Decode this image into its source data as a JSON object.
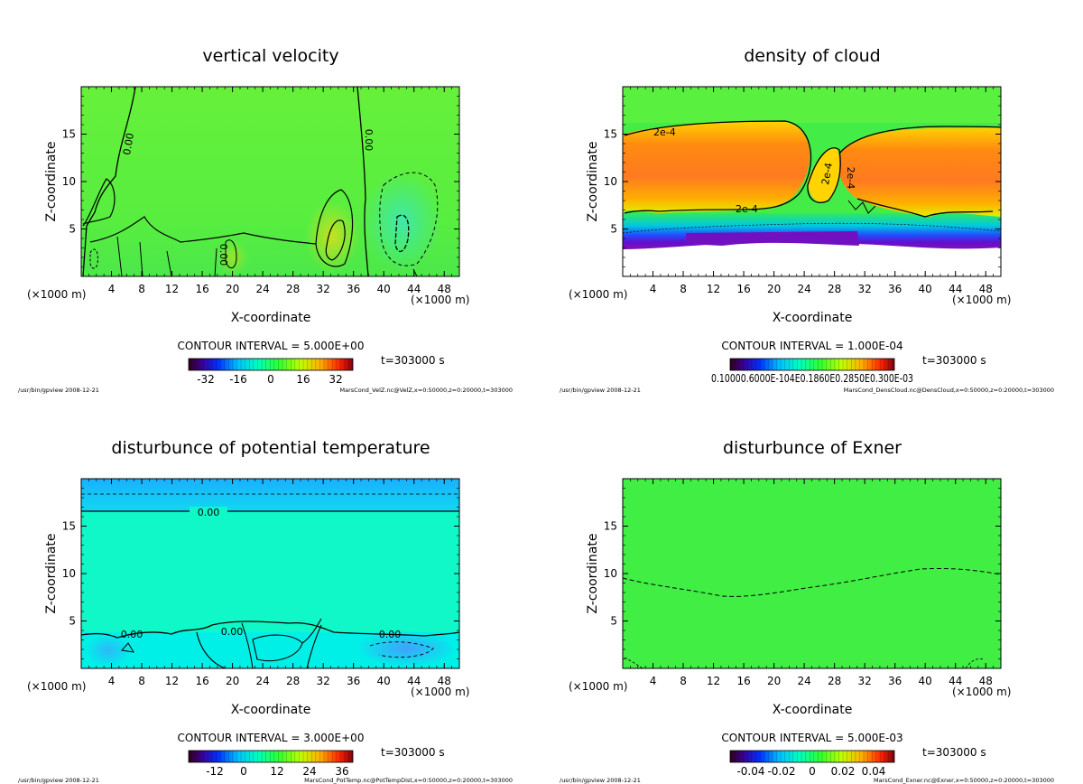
{
  "chart_data": [
    {
      "type": "heatmap",
      "title": "vertical velocity",
      "xlabel": "X-coordinate",
      "ylabel": "Z-coordinate",
      "x_unit_left": "(×1000 m)",
      "x_unit_right": "(×1000 m)",
      "xlim": [
        0,
        50
      ],
      "ylim": [
        0,
        20
      ],
      "xticks": [
        4,
        8,
        12,
        16,
        20,
        24,
        28,
        32,
        36,
        40,
        44,
        48
      ],
      "yticks": [
        5,
        10,
        15
      ],
      "contour_interval": "CONTOUR INTERVAL = 5.000E+00",
      "time": "t=303000 s",
      "colorbar_ticks": [
        "-32",
        "-16",
        "0",
        "16",
        "32"
      ],
      "contour_labels": [
        "0.00",
        "0.00",
        "0.00"
      ],
      "footer_left": "/usr/bin/gpview  2008-12-21",
      "footer_right": "MarsCond_VelZ.nc@VelZ,x=0:50000,z=0:20000,t=303000"
    },
    {
      "type": "heatmap",
      "title": "density of cloud",
      "xlabel": "X-coordinate",
      "ylabel": "Z-coordinate",
      "x_unit_left": "(×1000 m)",
      "x_unit_right": "(×1000 m)",
      "xlim": [
        0,
        50
      ],
      "ylim": [
        0,
        20
      ],
      "xticks": [
        4,
        8,
        12,
        16,
        20,
        24,
        28,
        32,
        36,
        40,
        44,
        48
      ],
      "yticks": [
        5,
        10,
        15
      ],
      "contour_interval": "CONTOUR INTERVAL = 1.000E-04",
      "time": "t=303000 s",
      "colorbar_ticks": [
        "0.10000.6000E-104E0.1860E0.2850E0.300E-03"
      ],
      "contour_labels": [
        "2e-4",
        "2e-4",
        "2e-4",
        "2e-4"
      ],
      "footer_left": "/usr/bin/gpview  2008-12-21",
      "footer_right": "MarsCond_DensCloud.nc@DensCloud,x=0:50000,z=0:20000,t=303000"
    },
    {
      "type": "heatmap",
      "title": "disturbunce of potential temperature",
      "xlabel": "X-coordinate",
      "ylabel": "Z-coordinate",
      "x_unit_left": "(×1000 m)",
      "x_unit_right": "(×1000 m)",
      "xlim": [
        0,
        50
      ],
      "ylim": [
        0,
        20
      ],
      "xticks": [
        4,
        8,
        12,
        16,
        20,
        24,
        28,
        32,
        36,
        40,
        44,
        48
      ],
      "yticks": [
        5,
        10,
        15
      ],
      "contour_interval": "CONTOUR INTERVAL = 3.000E+00",
      "time": "t=303000 s",
      "colorbar_ticks": [
        "-12",
        "0",
        "12",
        "24",
        "36"
      ],
      "contour_labels": [
        "0.00",
        "0.00",
        "0.00",
        "0.00"
      ],
      "footer_left": "/usr/bin/gpview  2008-12-21",
      "footer_right": "MarsCond_PotTemp.nc@PotTempDist,x=0:50000,z=0:20000,t=303000"
    },
    {
      "type": "heatmap",
      "title": "disturbunce of Exner",
      "xlabel": "X-coordinate",
      "ylabel": "Z-coordinate",
      "x_unit_left": "(×1000 m)",
      "x_unit_right": "(×1000 m)",
      "xlim": [
        0,
        50
      ],
      "ylim": [
        0,
        20
      ],
      "xticks": [
        4,
        8,
        12,
        16,
        20,
        24,
        28,
        32,
        36,
        40,
        44,
        48
      ],
      "yticks": [
        5,
        10,
        15
      ],
      "contour_interval": "CONTOUR INTERVAL = 5.000E-03",
      "time": "t=303000 s",
      "colorbar_ticks": [
        "-0.04",
        "-0.02",
        "0",
        "0.02",
        "0.04"
      ],
      "contour_labels": [],
      "footer_left": "/usr/bin/gpview  2008-12-21",
      "footer_right": "MarsCond_Exner.nc@Exner,x=0:50000,z=0:20000,t=303000"
    }
  ]
}
